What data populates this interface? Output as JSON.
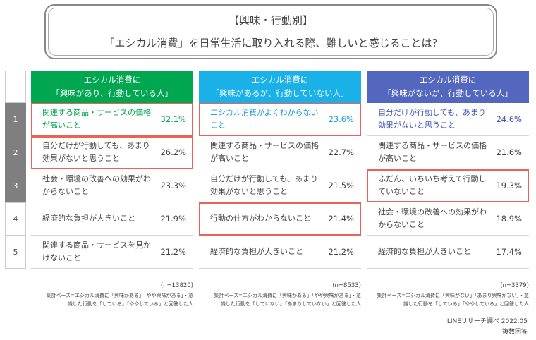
{
  "title": {
    "line1": "【興味・行動別】",
    "line2": "「エシカル消費」を日常生活に取り入れる際、難しいと感じることは?"
  },
  "ranks": [
    "1",
    "2",
    "3",
    "4",
    "5"
  ],
  "chart_data": {
    "type": "table",
    "unit": "%",
    "groups": [
      {
        "name": "エシカル消費に「興味があり、行動している人」",
        "header_line1": "エシカル消費に",
        "header_line2": "「興味があり、行動している人」",
        "color": "#00a650",
        "accent_text": "#00a650",
        "n": "(n=13820)",
        "note_line1": "集計ベース=エシカル消費に「興味がある」「やや興味がある」・意",
        "note_line2": "識した行動を「している」「ややしている」と回答した人",
        "items": [
          {
            "label": "関連する商品・サービスの価格が高いこと",
            "value": 32.1,
            "value_text": "32.1%",
            "highlight": true
          },
          {
            "label": "自分だけが行動しても、あまり効果がないと思うこと",
            "value": 26.2,
            "value_text": "26.2%",
            "highlight": true
          },
          {
            "label": "社会・環境の改善への効果がわからないこと",
            "value": 23.3,
            "value_text": "23.3%",
            "highlight": false
          },
          {
            "label": "経済的な負担が大きいこと",
            "value": 21.9,
            "value_text": "21.9%",
            "highlight": false
          },
          {
            "label": "関連する商品・サービスを見かけないこと",
            "value": 21.2,
            "value_text": "21.2%",
            "highlight": false
          }
        ]
      },
      {
        "name": "エシカル消費に「興味があるが、行動していない人」",
        "header_line1": "エシカル消費に",
        "header_line2": "「興味があるが、行動していない人」",
        "color": "#1ab0e8",
        "accent_text": "#1a9ad6",
        "n": "(n=8533)",
        "note_line1": "集計ベース=エシカル消費に「興味がある」「やや興味がある」・意",
        "note_line2": "識した行動を「していない」「あまりしていない」と回答した人",
        "items": [
          {
            "label": "エシカル消費がよくわからないこと",
            "value": 23.6,
            "value_text": "23.6%",
            "highlight": true
          },
          {
            "label": "関連する商品・サービスの価格が高いこと",
            "value": 22.7,
            "value_text": "22.7%",
            "highlight": false
          },
          {
            "label": "自分だけが行動しても、あまり効果がないと思うこと",
            "value": 21.5,
            "value_text": "21.5%",
            "highlight": false
          },
          {
            "label": "行動の仕方がわからないこと",
            "value": 21.4,
            "value_text": "21.4%",
            "highlight": true
          },
          {
            "label": "経済的な負担が大きいこと",
            "value": 21.2,
            "value_text": "21.2%",
            "highlight": false
          }
        ]
      },
      {
        "name": "エシカル消費に「興味がないが、行動している人」",
        "header_line1": "エシカル消費に",
        "header_line2": "「興味がないが、行動している人」",
        "color": "#5467be",
        "accent_text": "#3f55b5",
        "n": "(n=3379)",
        "note_line1": "集計ベース=エシカル消費に「興味がない」「あまり興味がない」・意",
        "note_line2": "識した行動を「している」「ややしている」と回答した人",
        "items": [
          {
            "label": "自分だけが行動しても、あまり効果がないと思うこと",
            "value": 24.6,
            "value_text": "24.6%",
            "highlight": false
          },
          {
            "label": "関連する商品・サービスの価格が高いこと",
            "value": 21.6,
            "value_text": "21.6%",
            "highlight": false
          },
          {
            "label": "ふだん、いちいち考えて行動していないこと",
            "value": 19.3,
            "value_text": "19.3%",
            "highlight": true
          },
          {
            "label": "社会・環境の改善への効果がわからないこと",
            "value": 18.9,
            "value_text": "18.9%",
            "highlight": false
          },
          {
            "label": "経済的な負担が大きいこと",
            "value": 17.4,
            "value_text": "17.4%",
            "highlight": false
          }
        ]
      }
    ]
  },
  "footer": {
    "source": "LINEリサーチ調べ 2022.05",
    "method": "複数回答"
  }
}
